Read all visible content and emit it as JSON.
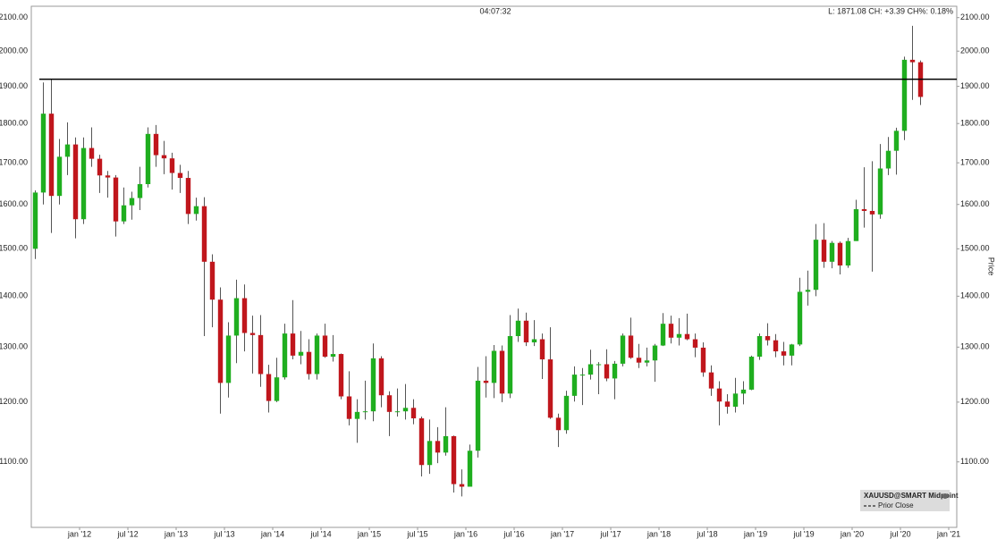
{
  "chart_data": {
    "type": "candlestick",
    "time": "04:07:32",
    "status": "L: 1871.08 CH: +3.39 CH%: 0.18%",
    "y_axis_label": "Price",
    "legend": {
      "title": "XAUUSD@SMART Midpoint",
      "prior_close": "Prior Close"
    },
    "log_scale": true,
    "ylim": [
      1000,
      2135
    ],
    "yticks": [
      {
        "value": 1100,
        "label": "1100.00"
      },
      {
        "value": 1200,
        "label": "1200.00"
      },
      {
        "value": 1300,
        "label": "1300.00"
      },
      {
        "value": 1400,
        "label": "1400.00"
      },
      {
        "value": 1500,
        "label": "1500.00"
      },
      {
        "value": 1600,
        "label": "1600.00"
      },
      {
        "value": 1700,
        "label": "1700.00"
      },
      {
        "value": 1800,
        "label": "1800.00"
      },
      {
        "value": 1900,
        "label": "1900.00"
      },
      {
        "value": 2000,
        "label": "2000.00"
      },
      {
        "value": 2100,
        "label": "2100.00"
      }
    ],
    "xlim": [
      "2011-07",
      "2021-02"
    ],
    "xticks": [
      {
        "value": "2012-01",
        "label": "jan '12"
      },
      {
        "value": "2012-07",
        "label": "jul '12"
      },
      {
        "value": "2013-01",
        "label": "jan '13"
      },
      {
        "value": "2013-07",
        "label": "jul '13"
      },
      {
        "value": "2014-01",
        "label": "jan '14"
      },
      {
        "value": "2014-07",
        "label": "jul '14"
      },
      {
        "value": "2015-01",
        "label": "jan '15"
      },
      {
        "value": "2015-07",
        "label": "jul '15"
      },
      {
        "value": "2016-01",
        "label": "jan '16"
      },
      {
        "value": "2016-07",
        "label": "jul '16"
      },
      {
        "value": "2017-01",
        "label": "jan '17"
      },
      {
        "value": "2017-07",
        "label": "jul '17"
      },
      {
        "value": "2018-01",
        "label": "jan '18"
      },
      {
        "value": "2018-07",
        "label": "jul '18"
      },
      {
        "value": "2019-01",
        "label": "jan '19"
      },
      {
        "value": "2019-07",
        "label": "jul '19"
      },
      {
        "value": "2020-01",
        "label": "jan '20"
      },
      {
        "value": "2020-07",
        "label": "jul '20"
      },
      {
        "value": "2021-01",
        "label": "jan '21"
      }
    ],
    "up_color": "#1fae1f",
    "down_color": "#c0161c",
    "wick_color": "#555555",
    "hline": {
      "value": 1920,
      "from": "2011-08",
      "color": "#000000"
    },
    "x": [
      "2011-07",
      "2011-08",
      "2011-09",
      "2011-10",
      "2011-11",
      "2011-12",
      "2012-01",
      "2012-02",
      "2012-03",
      "2012-04",
      "2012-05",
      "2012-06",
      "2012-07",
      "2012-08",
      "2012-09",
      "2012-10",
      "2012-11",
      "2012-12",
      "2013-01",
      "2013-02",
      "2013-03",
      "2013-04",
      "2013-05",
      "2013-06",
      "2013-07",
      "2013-08",
      "2013-09",
      "2013-10",
      "2013-11",
      "2013-12",
      "2014-01",
      "2014-02",
      "2014-03",
      "2014-04",
      "2014-05",
      "2014-06",
      "2014-07",
      "2014-08",
      "2014-09",
      "2014-10",
      "2014-11",
      "2014-12",
      "2015-01",
      "2015-02",
      "2015-03",
      "2015-04",
      "2015-05",
      "2015-06",
      "2015-07",
      "2015-08",
      "2015-09",
      "2015-10",
      "2015-11",
      "2015-12",
      "2016-01",
      "2016-02",
      "2016-03",
      "2016-04",
      "2016-05",
      "2016-06",
      "2016-07",
      "2016-08",
      "2016-09",
      "2016-10",
      "2016-11",
      "2016-12",
      "2017-01",
      "2017-02",
      "2017-03",
      "2017-04",
      "2017-05",
      "2017-06",
      "2017-07",
      "2017-08",
      "2017-09",
      "2017-10",
      "2017-11",
      "2017-12",
      "2018-01",
      "2018-02",
      "2018-03",
      "2018-04",
      "2018-05",
      "2018-06",
      "2018-07",
      "2018-08",
      "2018-09",
      "2018-10",
      "2018-11",
      "2018-12",
      "2019-01",
      "2019-02",
      "2019-03",
      "2019-04",
      "2019-05",
      "2019-06",
      "2019-07",
      "2019-08",
      "2019-09",
      "2019-10",
      "2019-11",
      "2019-12",
      "2020-01",
      "2020-02",
      "2020-03",
      "2020-04",
      "2020-05",
      "2020-06",
      "2020-07",
      "2020-08",
      "2020-09"
    ],
    "open": [
      1500,
      1628,
      1826,
      1620,
      1715,
      1746,
      1566,
      1737,
      1710,
      1669,
      1664,
      1561,
      1598,
      1615,
      1648,
      1773,
      1719,
      1711,
      1675,
      1663,
      1578,
      1596,
      1472,
      1393,
      1234,
      1322,
      1396,
      1327,
      1323,
      1250,
      1202,
      1244,
      1326,
      1284,
      1291,
      1250,
      1322,
      1282,
      1287,
      1210,
      1171,
      1183,
      1184,
      1279,
      1212,
      1183,
      1184,
      1190,
      1172,
      1095,
      1134,
      1115,
      1142,
      1065,
      1061,
      1118,
      1238,
      1234,
      1293,
      1215,
      1321,
      1351,
      1309,
      1315,
      1277,
      1173,
      1152,
      1211,
      1249,
      1249,
      1268,
      1268,
      1242,
      1269,
      1322,
      1280,
      1271,
      1275,
      1303,
      1345,
      1318,
      1325,
      1315,
      1299,
      1253,
      1224,
      1201,
      1192,
      1215,
      1222,
      1282,
      1321,
      1313,
      1292,
      1284,
      1305,
      1409,
      1413,
      1520,
      1472,
      1513,
      1464,
      1517,
      1589,
      1585,
      1577,
      1686,
      1730,
      1781,
      1975,
      1968
    ],
    "high": [
      1633,
      1911,
      1920,
      1760,
      1803,
      1764,
      1764,
      1790,
      1720,
      1680,
      1670,
      1640,
      1630,
      1690,
      1790,
      1796,
      1755,
      1725,
      1695,
      1680,
      1616,
      1617,
      1488,
      1418,
      1348,
      1434,
      1424,
      1361,
      1362,
      1267,
      1280,
      1345,
      1392,
      1331,
      1315,
      1326,
      1345,
      1323,
      1288,
      1255,
      1205,
      1238,
      1307,
      1283,
      1219,
      1224,
      1232,
      1205,
      1175,
      1170,
      1157,
      1191,
      1143,
      1088,
      1128,
      1263,
      1283,
      1304,
      1303,
      1362,
      1375,
      1367,
      1352,
      1326,
      1338,
      1180,
      1220,
      1264,
      1261,
      1295,
      1272,
      1296,
      1274,
      1326,
      1357,
      1306,
      1299,
      1306,
      1366,
      1361,
      1356,
      1365,
      1326,
      1309,
      1266,
      1237,
      1214,
      1243,
      1237,
      1284,
      1326,
      1346,
      1325,
      1310,
      1306,
      1438,
      1453,
      1555,
      1557,
      1517,
      1516,
      1524,
      1611,
      1689,
      1704,
      1747,
      1765,
      1789,
      1984,
      2075,
      1973
    ],
    "low": [
      1478,
      1600,
      1535,
      1600,
      1670,
      1523,
      1555,
      1690,
      1627,
      1616,
      1527,
      1555,
      1565,
      1587,
      1640,
      1690,
      1672,
      1635,
      1627,
      1555,
      1563,
      1321,
      1338,
      1180,
      1208,
      1270,
      1292,
      1251,
      1227,
      1182,
      1200,
      1240,
      1277,
      1268,
      1240,
      1240,
      1280,
      1273,
      1205,
      1160,
      1131,
      1170,
      1167,
      1191,
      1142,
      1175,
      1170,
      1162,
      1077,
      1081,
      1098,
      1110,
      1052,
      1046,
      1061,
      1107,
      1208,
      1207,
      1200,
      1207,
      1310,
      1302,
      1302,
      1241,
      1171,
      1124,
      1146,
      1201,
      1195,
      1240,
      1214,
      1237,
      1205,
      1264,
      1278,
      1261,
      1264,
      1236,
      1302,
      1307,
      1303,
      1313,
      1281,
      1245,
      1211,
      1160,
      1180,
      1182,
      1196,
      1221,
      1276,
      1303,
      1281,
      1266,
      1266,
      1302,
      1381,
      1400,
      1459,
      1458,
      1445,
      1459,
      1517,
      1547,
      1451,
      1567,
      1670,
      1671,
      1757,
      1863,
      1849
    ],
    "close": [
      1628,
      1826,
      1620,
      1715,
      1746,
      1566,
      1737,
      1710,
      1669,
      1664,
      1561,
      1598,
      1615,
      1648,
      1773,
      1719,
      1711,
      1675,
      1663,
      1578,
      1596,
      1472,
      1393,
      1234,
      1322,
      1396,
      1327,
      1323,
      1250,
      1202,
      1244,
      1326,
      1284,
      1291,
      1250,
      1322,
      1282,
      1287,
      1210,
      1171,
      1183,
      1184,
      1279,
      1212,
      1183,
      1184,
      1190,
      1172,
      1095,
      1134,
      1115,
      1142,
      1065,
      1061,
      1118,
      1238,
      1234,
      1293,
      1215,
      1321,
      1351,
      1309,
      1315,
      1277,
      1173,
      1152,
      1211,
      1249,
      1249,
      1268,
      1268,
      1242,
      1269,
      1322,
      1280,
      1271,
      1275,
      1303,
      1345,
      1318,
      1325,
      1315,
      1299,
      1253,
      1224,
      1201,
      1192,
      1215,
      1222,
      1282,
      1321,
      1313,
      1292,
      1284,
      1305,
      1409,
      1413,
      1520,
      1472,
      1513,
      1464,
      1517,
      1589,
      1585,
      1577,
      1686,
      1730,
      1781,
      1975,
      1968,
      1871.08
    ]
  }
}
